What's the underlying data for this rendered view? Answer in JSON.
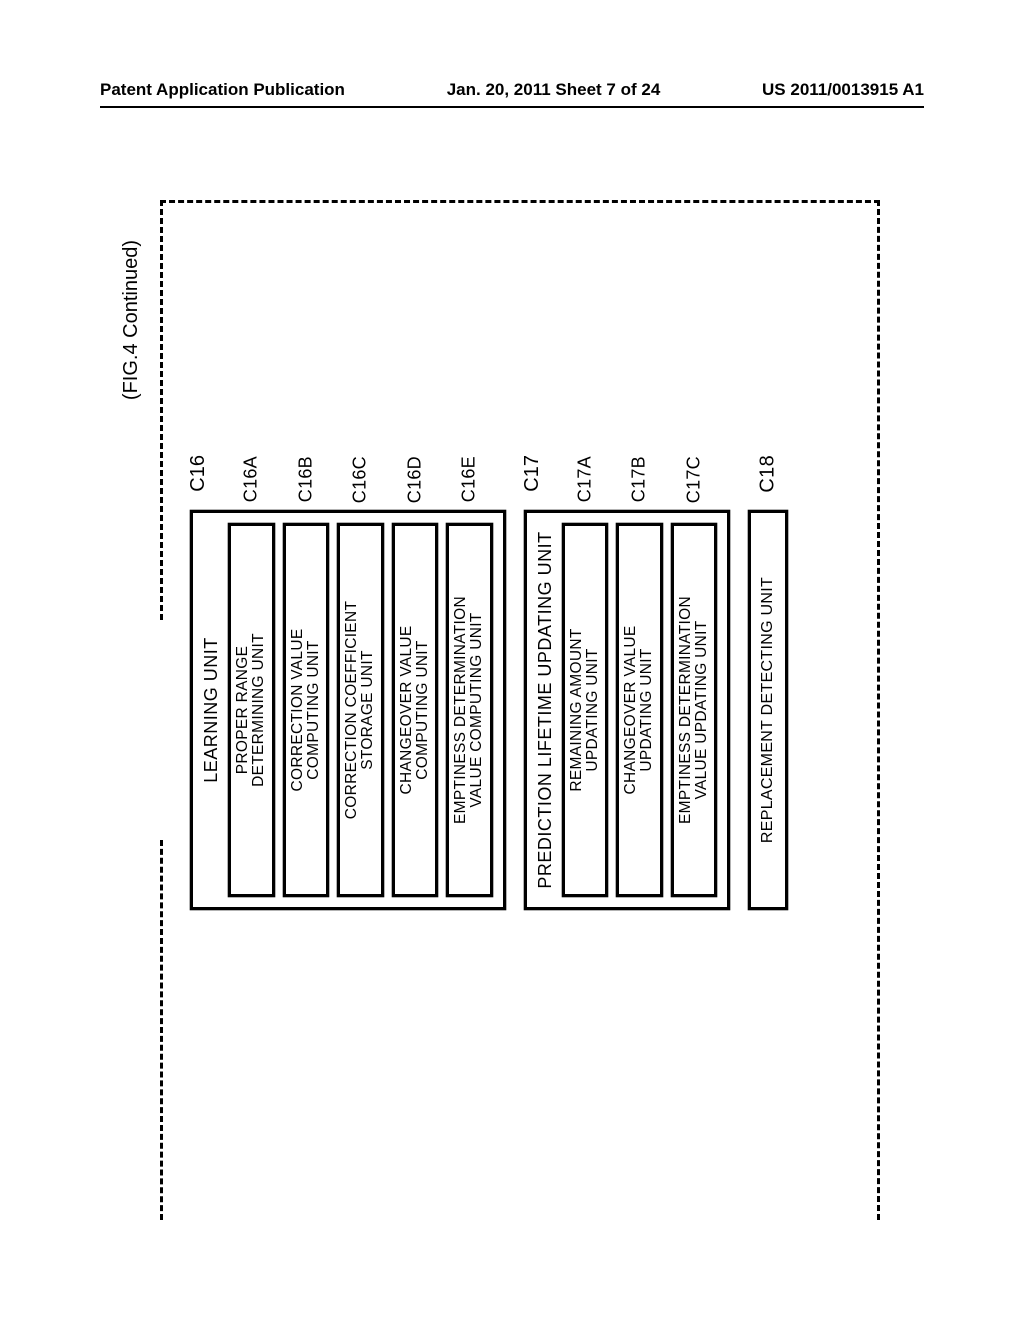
{
  "header": {
    "left": "Patent Application Publication",
    "center": "Jan. 20, 2011  Sheet 7 of 24",
    "right": "US 2011/0013915 A1"
  },
  "figure": {
    "continued_label": "(FIG.4 Continued)"
  },
  "blocks": {
    "learning": {
      "ref": "C16",
      "title": "LEARNING UNIT",
      "items": [
        {
          "ref": "C16A",
          "label_l1": "PROPER RANGE",
          "label_l2": "DETERMINING UNIT"
        },
        {
          "ref": "C16B",
          "label_l1": "CORRECTION VALUE",
          "label_l2": "COMPUTING UNIT"
        },
        {
          "ref": "C16C",
          "label_l1": "CORRECTION COEFFICIENT",
          "label_l2": "STORAGE UNIT"
        },
        {
          "ref": "C16D",
          "label_l1": "CHANGEOVER VALUE",
          "label_l2": "COMPUTING UNIT"
        },
        {
          "ref": "C16E",
          "label_l1": "EMPTINESS DETERMINATION",
          "label_l2": "VALUE COMPUTING UNIT"
        }
      ]
    },
    "prediction": {
      "ref": "C17",
      "title": "PREDICTION LIFETIME UPDATING UNIT",
      "items": [
        {
          "ref": "C17A",
          "label_l1": "REMAINING AMOUNT",
          "label_l2": "UPDATING UNIT"
        },
        {
          "ref": "C17B",
          "label_l1": "CHANGEOVER VALUE",
          "label_l2": "UPDATING UNIT"
        },
        {
          "ref": "C17C",
          "label_l1": "EMPTINESS DETERMINATION",
          "label_l2": "VALUE UPDATING UNIT"
        }
      ]
    },
    "replacement": {
      "ref": "C18",
      "label": "REPLACEMENT DETECTING UNIT"
    }
  }
}
